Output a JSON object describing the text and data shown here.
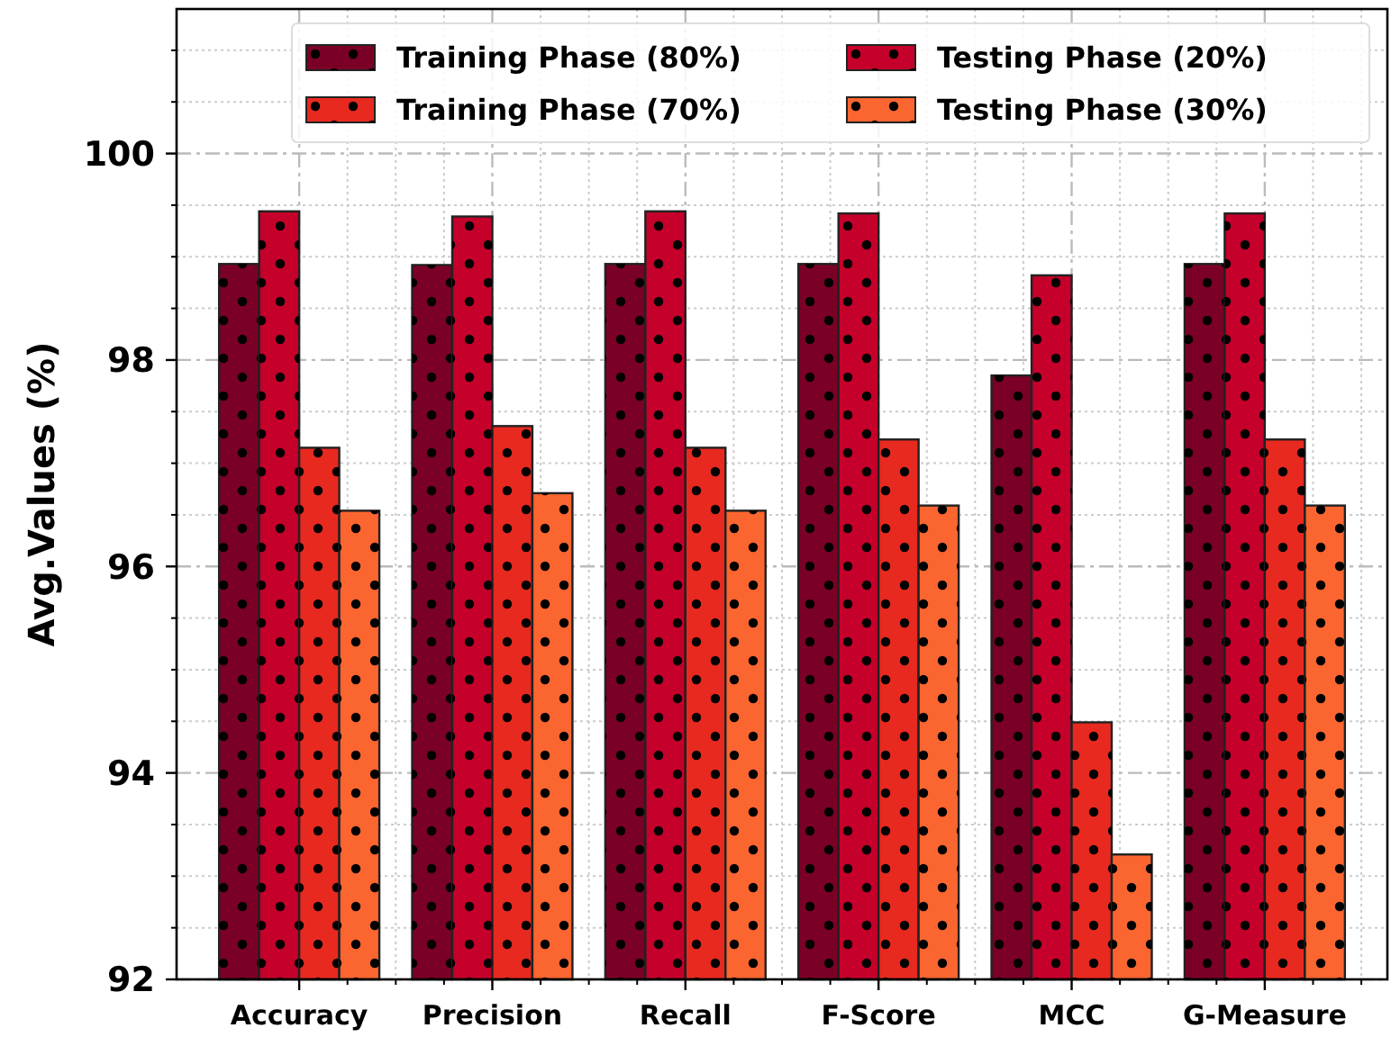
{
  "chart_data": {
    "type": "bar",
    "ylabel": "Avg.Values (%)",
    "categories": [
      "Accuracy",
      "Precision",
      "Recall",
      "F-Score",
      "MCC",
      "G-Measure"
    ],
    "series": [
      {
        "name": "Training Phase (80%)",
        "color": "#7b0025",
        "values": [
          98.93,
          98.92,
          98.93,
          98.93,
          97.85,
          98.93
        ]
      },
      {
        "name": "Testing Phase (20%)",
        "color": "#c5002a",
        "values": [
          99.44,
          99.39,
          99.44,
          99.42,
          98.82,
          99.42
        ]
      },
      {
        "name": "Training Phase (70%)",
        "color": "#e8291f",
        "values": [
          97.15,
          97.36,
          97.15,
          97.23,
          94.49,
          97.23
        ]
      },
      {
        "name": "Testing Phase (30%)",
        "color": "#fb6530",
        "values": [
          96.54,
          96.71,
          96.54,
          96.59,
          93.21,
          96.59
        ]
      }
    ],
    "ylim": [
      92,
      101.4
    ],
    "yticks": [
      92,
      94,
      96,
      98,
      100
    ],
    "grid": true,
    "legend": "top right"
  }
}
